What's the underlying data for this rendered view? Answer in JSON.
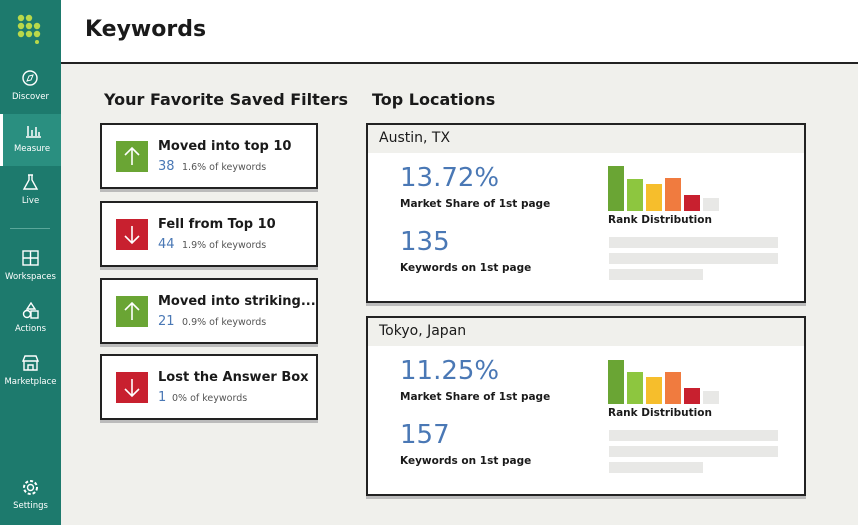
{
  "sidebar": {
    "items": [
      "Discover",
      "Measure",
      "Live",
      "Workspaces",
      "Actions",
      "Marketplace"
    ],
    "active": 1,
    "footer": "Settings"
  },
  "header": {
    "title": "Keywords"
  },
  "filters": {
    "title": "Your Favorite Saved Filters",
    "items": [
      {
        "label": "Moved into top 10",
        "count": 38,
        "detail": "1.6% of keywords",
        "direction": "up"
      },
      {
        "label": "Fell from Top 10",
        "count": 44,
        "detail": "1.9% of keywords",
        "direction": "down"
      },
      {
        "label": "Moved into striking...",
        "count": 21,
        "detail": "0.9% of keywords",
        "direction": "up"
      },
      {
        "label": "Lost the Answer Box",
        "count": 1,
        "detail": "0% of keywords",
        "direction": "down"
      }
    ]
  },
  "locations": {
    "title": "Top Locations",
    "rank_colors": [
      "#6aa534",
      "#8dc63f",
      "#f6be2c",
      "#f07b3f",
      "#c8202f",
      "#e8e8e6"
    ],
    "items": [
      {
        "name": "Austin, TX",
        "market_share": "13.72%",
        "market_share_label": "Market Share of 1st page",
        "keywords": 135,
        "keywords_label": "Keywords on 1st page",
        "distribution_label": "Rank Distribution",
        "rank_distribution": [
          45,
          32,
          27,
          33,
          16,
          13
        ]
      },
      {
        "name": "Tokyo, Japan",
        "market_share": "11.25%",
        "market_share_label": "Market Share of 1st page",
        "keywords": 157,
        "keywords_label": "Keywords on 1st page",
        "distribution_label": "Rank Distribution",
        "rank_distribution": [
          44,
          32,
          27,
          32,
          16,
          13
        ]
      }
    ]
  }
}
